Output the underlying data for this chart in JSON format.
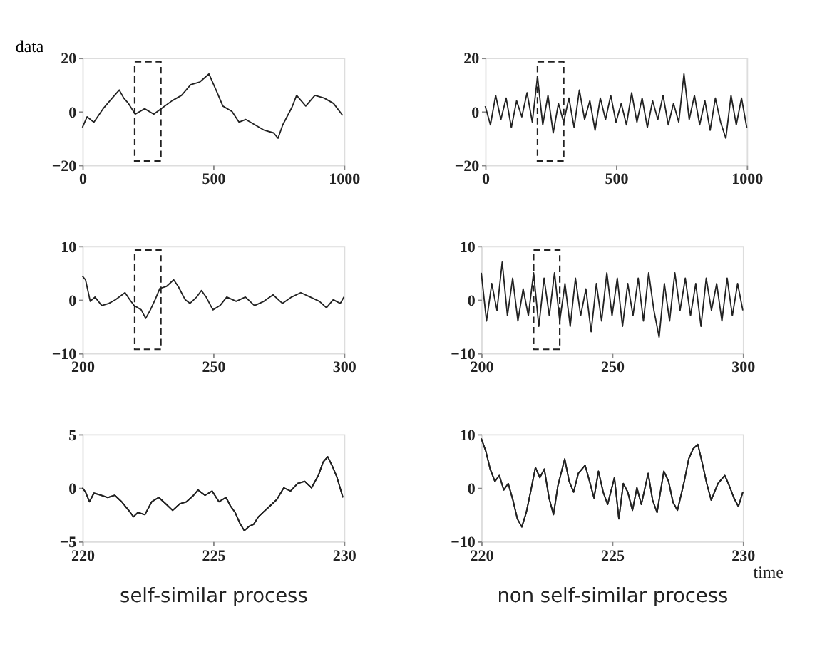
{
  "chart_data": [
    {
      "type": "line",
      "ylabel": "data",
      "color": "#222222",
      "xlim": [
        0,
        1000
      ],
      "ylim": [
        -20,
        20
      ],
      "xticks": [
        0,
        500,
        1000
      ],
      "yticks": [
        -20,
        0,
        20
      ],
      "grid": false,
      "x": [
        0,
        18,
        44,
        79,
        114,
        141,
        158,
        176,
        202,
        238,
        273,
        308,
        343,
        379,
        414,
        449,
        484,
        511,
        537,
        572,
        599,
        625,
        660,
        695,
        731,
        748,
        766,
        801,
        819,
        854,
        889,
        924,
        960,
        995
      ],
      "values": [
        -6,
        -2,
        -4,
        1,
        5,
        8,
        5,
        3,
        -1,
        1,
        -1,
        1.5,
        4,
        6,
        10,
        11,
        14,
        8,
        2,
        0,
        -4,
        -3,
        -5,
        -7,
        -8,
        -10,
        -5,
        1.5,
        6,
        2,
        6,
        5,
        3,
        -1.5
      ],
      "bands": [
        {
          "axis": "x",
          "from": 200,
          "to": 300,
          "color": "#ffffff"
        }
      ]
    },
    {
      "type": "line",
      "color": "#222222",
      "xlim": [
        0,
        1000
      ],
      "ylim": [
        -20,
        20
      ],
      "xticks": [
        0,
        500,
        1000
      ],
      "yticks": [
        -20,
        0,
        20
      ],
      "grid": false,
      "x": [
        0,
        20,
        40,
        60,
        80,
        100,
        120,
        140,
        160,
        180,
        200,
        220,
        240,
        260,
        280,
        300,
        320,
        340,
        360,
        380,
        400,
        420,
        440,
        460,
        480,
        500,
        520,
        540,
        560,
        580,
        600,
        620,
        640,
        660,
        680,
        700,
        720,
        740,
        760,
        780,
        800,
        820,
        840,
        860,
        880,
        900,
        920,
        940,
        960,
        980,
        1000
      ],
      "values": [
        2,
        -5,
        6,
        -3,
        5,
        -6,
        4,
        -2,
        7,
        -4,
        13,
        -5,
        6,
        -8,
        3,
        -4,
        5,
        -6,
        8,
        -3,
        4,
        -7,
        5,
        -3,
        6,
        -4,
        3,
        -5,
        7,
        -4,
        5,
        -6,
        4,
        -3,
        6,
        -5,
        3,
        -4,
        14,
        -3,
        6,
        -5,
        4,
        -7,
        5,
        -4,
        -10,
        6,
        -5,
        5,
        -6
      ],
      "bands": [
        {
          "axis": "x",
          "from": 200,
          "to": 300,
          "color": "#ffffff"
        }
      ]
    },
    {
      "type": "line",
      "color": "#222222",
      "xlim": [
        200,
        300
      ],
      "ylim": [
        -10,
        10
      ],
      "xticks": [
        200,
        250,
        300
      ],
      "yticks": [
        -10,
        0,
        10
      ],
      "grid": false,
      "x": [
        200,
        201.2,
        203,
        204.8,
        207.4,
        210.1,
        212.7,
        216.3,
        218.1,
        219.8,
        222.5,
        224.2,
        226,
        227.8,
        229.6,
        232.2,
        234.9,
        236.6,
        239.3,
        241.1,
        243.7,
        245.5,
        247.3,
        249.9,
        252.6,
        255.2,
        258.8,
        262.3,
        265.8,
        269.4,
        272.9,
        276.5,
        280,
        283.5,
        287.1,
        290.6,
        293.3,
        295.9,
        298.6,
        300
      ],
      "values": [
        4.4,
        3.7,
        -0.3,
        0.5,
        -1.1,
        -0.7,
        0,
        1.3,
        0,
        -1.1,
        -1.9,
        -3.5,
        -1.9,
        0,
        2.1,
        2.5,
        3.7,
        2.5,
        0,
        -0.7,
        0.5,
        1.7,
        0.5,
        -1.9,
        -1.1,
        0.5,
        -0.3,
        0.5,
        -1.1,
        -0.3,
        0.9,
        -0.7,
        0.5,
        1.3,
        0.5,
        -0.3,
        -1.5,
        0,
        -0.7,
        0.5
      ],
      "bands": [
        {
          "axis": "x",
          "from": 220,
          "to": 230,
          "color": "#ffffff"
        }
      ]
    },
    {
      "type": "line",
      "color": "#222222",
      "xlim": [
        200,
        300
      ],
      "ylim": [
        -10,
        10
      ],
      "xticks": [
        200,
        250,
        300
      ],
      "yticks": [
        -10,
        0,
        10
      ],
      "grid": false,
      "x": [
        200,
        202,
        204,
        206,
        208,
        210,
        212,
        214,
        216,
        218,
        220,
        222,
        224,
        226,
        228,
        230,
        232,
        234,
        236,
        238,
        240,
        242,
        244,
        246,
        248,
        250,
        252,
        254,
        256,
        258,
        260,
        262,
        264,
        266,
        268,
        270,
        272,
        274,
        276,
        278,
        280,
        282,
        284,
        286,
        288,
        290,
        292,
        294,
        296,
        298,
        300
      ],
      "values": [
        5,
        -4,
        3,
        -2,
        7,
        -3,
        4,
        -4,
        2,
        -3,
        5,
        -5,
        4,
        -3,
        5,
        -4,
        3,
        -5,
        4,
        -3,
        2,
        -6,
        3,
        -4,
        5,
        -3,
        4,
        -5,
        3,
        -3,
        4,
        -4,
        5,
        -2,
        -7,
        3,
        -4,
        5,
        -2,
        4,
        -3,
        3,
        -5,
        4,
        -2,
        3,
        -4,
        4,
        -3,
        3,
        -2
      ],
      "bands": [
        {
          "axis": "x",
          "from": 220,
          "to": 230,
          "color": "#ffffff"
        }
      ]
    },
    {
      "type": "line",
      "xlabel": "self-similar process",
      "color": "#222222",
      "xlim": [
        220,
        230
      ],
      "ylim": [
        -5,
        5
      ],
      "xticks": [
        220,
        225,
        230
      ],
      "yticks": [
        -5,
        0,
        5
      ],
      "grid": false,
      "x": [
        220,
        220.12,
        220.27,
        220.44,
        220.71,
        220.97,
        221.24,
        221.5,
        221.77,
        221.95,
        222.12,
        222.39,
        222.65,
        222.92,
        223.19,
        223.45,
        223.72,
        223.98,
        224.25,
        224.42,
        224.69,
        224.96,
        225.22,
        225.49,
        225.66,
        225.84,
        226.02,
        226.19,
        226.37,
        226.55,
        226.73,
        226.9,
        227.17,
        227.43,
        227.7,
        227.96,
        228.23,
        228.5,
        228.76,
        229.03,
        229.2,
        229.38,
        229.56,
        229.73,
        229.96
      ],
      "values": [
        0,
        -0.4,
        -1.3,
        -0.5,
        -0.7,
        -0.9,
        -0.7,
        -1.3,
        -2.1,
        -2.7,
        -2.3,
        -2.5,
        -1.3,
        -0.9,
        -1.5,
        -2.1,
        -1.5,
        -1.3,
        -0.7,
        -0.2,
        -0.7,
        -0.3,
        -1.3,
        -0.9,
        -1.7,
        -2.3,
        -3.3,
        -4,
        -3.6,
        -3.4,
        -2.7,
        -2.3,
        -1.7,
        -1.1,
        0,
        -0.3,
        0.4,
        0.6,
        0,
        1.2,
        2.4,
        2.9,
        2,
        1,
        -0.9
      ]
    },
    {
      "type": "line",
      "xlabel": "non self-similar process",
      "color": "#222222",
      "xlim": [
        220,
        230
      ],
      "ylim": [
        -10,
        10
      ],
      "xticks": [
        220,
        225,
        230
      ],
      "yticks": [
        -10,
        0,
        10
      ],
      "grid": false,
      "x": [
        220,
        220.17,
        220.34,
        220.52,
        220.69,
        220.86,
        221.03,
        221.21,
        221.38,
        221.55,
        221.72,
        221.9,
        222.07,
        222.24,
        222.41,
        222.59,
        222.76,
        222.93,
        223.19,
        223.36,
        223.53,
        223.71,
        223.97,
        224.14,
        224.31,
        224.48,
        224.66,
        224.83,
        225.09,
        225.26,
        225.43,
        225.6,
        225.78,
        225.95,
        226.12,
        226.38,
        226.55,
        226.72,
        226.98,
        227.16,
        227.33,
        227.5,
        227.76,
        227.93,
        228.1,
        228.28,
        228.45,
        228.62,
        228.79,
        229.05,
        229.31,
        229.48,
        229.66,
        229.83,
        230
      ],
      "values": [
        9.2,
        6.9,
        3.5,
        1.2,
        2.3,
        -0.4,
        0.8,
        -2.3,
        -5.8,
        -7.3,
        -4.6,
        -0.4,
        3.8,
        1.9,
        3.5,
        -1.9,
        -5,
        0.4,
        5.4,
        1.2,
        -0.8,
        2.7,
        4.2,
        1.2,
        -1.9,
        3.1,
        -0.8,
        -3.1,
        1.9,
        -5.8,
        0.8,
        -0.8,
        -4.2,
        0,
        -3.1,
        2.7,
        -2.3,
        -4.6,
        3.1,
        1.2,
        -2.7,
        -4.2,
        1.2,
        5.4,
        7.3,
        8.1,
        4.6,
        0.8,
        -2.3,
        0.8,
        2.3,
        0.4,
        -1.9,
        -3.5,
        -0.8
      ],
      "annotations": [
        "time"
      ]
    }
  ]
}
